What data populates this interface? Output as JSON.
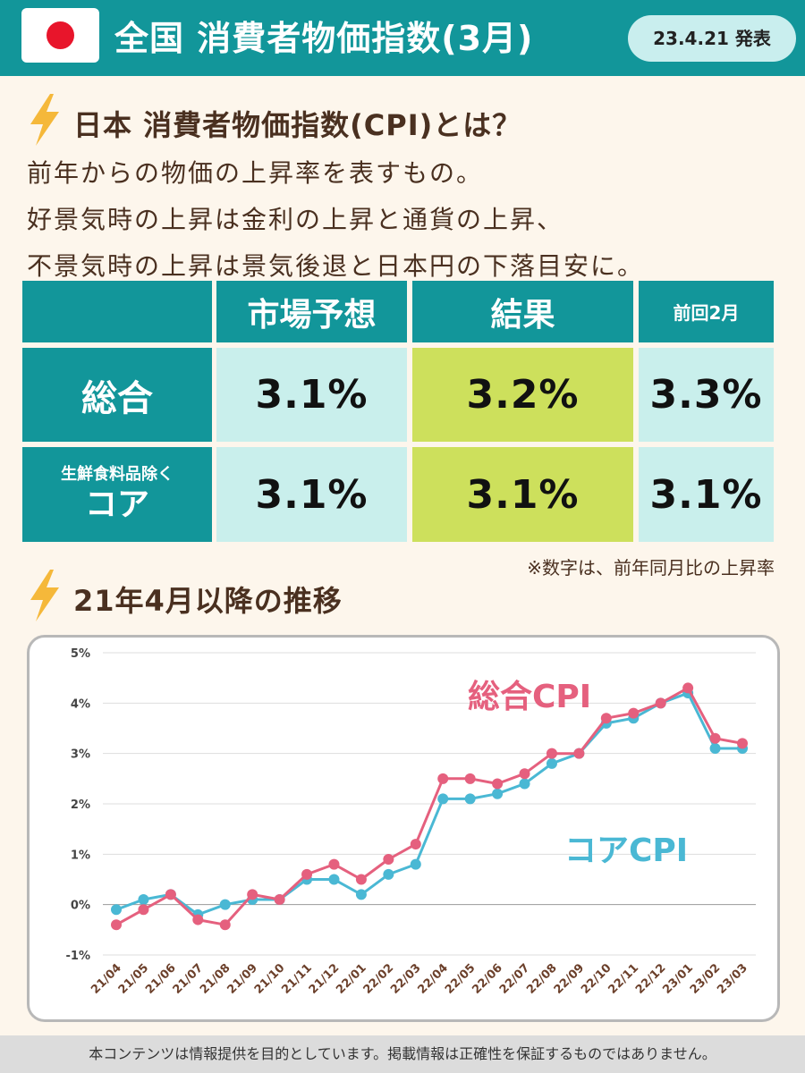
{
  "header": {
    "title": "全国 消費者物価指数(3月)",
    "date_badge": "23.4.21 発表"
  },
  "section1": {
    "heading": "日本 消費者物価指数(CPI)とは？",
    "desc_lines": [
      "前年からの物価の上昇率を表すもの。",
      "好景気時の上昇は金利の上昇と通貨の上昇、",
      "不景気時の上昇は景気後退と日本円の下落目安に。"
    ]
  },
  "table": {
    "headers": [
      "市場予想",
      "結果",
      "前回2月"
    ],
    "rows": [
      {
        "label": "総合",
        "sublabel": "",
        "values": [
          "3.1%",
          "3.2%",
          "3.3%"
        ]
      },
      {
        "label": "コア",
        "sublabel": "生鮮食料品除く",
        "values": [
          "3.1%",
          "3.1%",
          "3.1%"
        ]
      }
    ],
    "note": "※数字は、前年同月比の上昇率"
  },
  "section2": {
    "heading": "21年4月以降の推移"
  },
  "colors": {
    "teal": "#12969a",
    "light_teal": "#c9efec",
    "lime": "#cde05c",
    "headline_cpi": "#e5607e",
    "core_cpi": "#4ab8d4",
    "bolt": "#f5b83a"
  },
  "chart_data": {
    "type": "line",
    "categories": [
      "21/04",
      "21/05",
      "21/06",
      "21/07",
      "21/08",
      "21/09",
      "21/10",
      "21/11",
      "21/12",
      "22/01",
      "22/02",
      "22/03",
      "22/04",
      "22/05",
      "22/06",
      "22/07",
      "22/08",
      "22/09",
      "22/10",
      "22/11",
      "22/12",
      "23/01",
      "23/02",
      "23/03"
    ],
    "series": [
      {
        "name": "総合CPI",
        "color": "#e5607e",
        "values": [
          -0.4,
          -0.1,
          0.2,
          -0.3,
          -0.4,
          0.2,
          0.1,
          0.6,
          0.8,
          0.5,
          0.9,
          1.2,
          2.5,
          2.5,
          2.4,
          2.6,
          3.0,
          3.0,
          3.7,
          3.8,
          4.0,
          4.3,
          3.3,
          3.2
        ]
      },
      {
        "name": "コアCPI",
        "color": "#4ab8d4",
        "values": [
          -0.1,
          0.1,
          0.2,
          -0.2,
          0.0,
          0.1,
          0.1,
          0.5,
          0.5,
          0.2,
          0.6,
          0.8,
          2.1,
          2.1,
          2.2,
          2.4,
          2.8,
          3.0,
          3.6,
          3.7,
          4.0,
          4.2,
          3.1,
          3.1
        ]
      }
    ],
    "yticks": [
      "5%",
      "4%",
      "3%",
      "2%",
      "1%",
      "0%",
      "-1%"
    ],
    "ylim": [
      -1,
      5
    ],
    "grid": true,
    "legend": "inline labels"
  },
  "footer": {
    "disclaimer": "本コンテンツは情報提供を目的としています。掲載情報は正確性を保証するものではありません。"
  }
}
